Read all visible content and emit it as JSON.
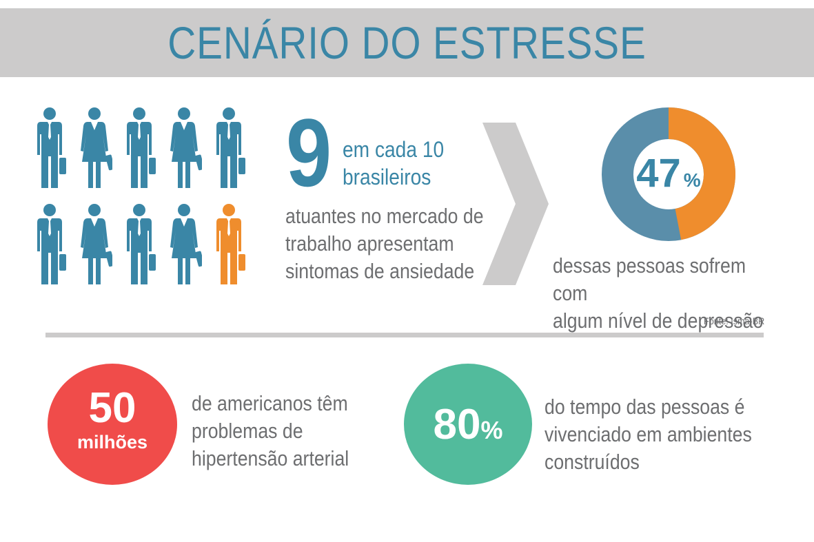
{
  "header": {
    "title": "CENÁRIO DO ESTRESSE"
  },
  "people": {
    "colors": {
      "default": "#3a86a6",
      "highlight": "#ef8d2d"
    },
    "figures": [
      "man",
      "woman",
      "man",
      "woman",
      "man",
      "man",
      "woman",
      "man",
      "woman",
      "man"
    ],
    "highlighted_index": 9
  },
  "anxiety": {
    "number": "9",
    "count_text": "em cada 10\nbrasileiros",
    "description": "atuantes no mercado de\ntrabalho apresentam\nsintomas de ansiedade"
  },
  "depression": {
    "value": "47",
    "percent_symbol": "%",
    "share": 47,
    "colors": {
      "share": "#ef8d2d",
      "rest": "#5a8eaa"
    },
    "description": "dessas pessoas sofrem com\nalgum nível de depressão"
  },
  "source": "Fonte: Isma-BR",
  "hypertension": {
    "value": "50",
    "unit": "milhões",
    "description": "de americanos têm\nproblemas de\nhipertensão arterial",
    "color": "#f04c4a"
  },
  "environment": {
    "value": "80",
    "percent_symbol": "%",
    "description": "do tempo das pessoas é\nvivenciado em ambientes\nconstruídos",
    "color": "#52bb9c"
  }
}
